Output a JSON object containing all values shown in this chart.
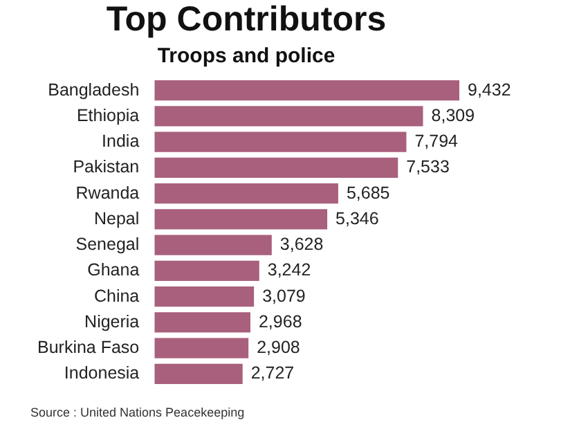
{
  "chart_data": {
    "type": "bar",
    "orientation": "horizontal",
    "title": "Top Contributors",
    "subtitle": "Troops and police",
    "categories": [
      "Bangladesh",
      "Ethiopia",
      "India",
      "Pakistan",
      "Rwanda",
      "Nepal",
      "Senegal",
      "Ghana",
      "China",
      "Nigeria",
      "Burkina Faso",
      "Indonesia"
    ],
    "values": [
      9432,
      8309,
      7794,
      7533,
      5685,
      5346,
      3628,
      3242,
      3079,
      2968,
      2908,
      2727
    ],
    "value_labels": [
      "9,432",
      "8,309",
      "7,794",
      "7,533",
      "5,685",
      "5,346",
      "3,628",
      "3,242",
      "3,079",
      "2,968",
      "2,908",
      "2,727"
    ],
    "color": "#a8607c",
    "annotations": [
      "Source : United Nations Peacekeeping"
    ]
  }
}
